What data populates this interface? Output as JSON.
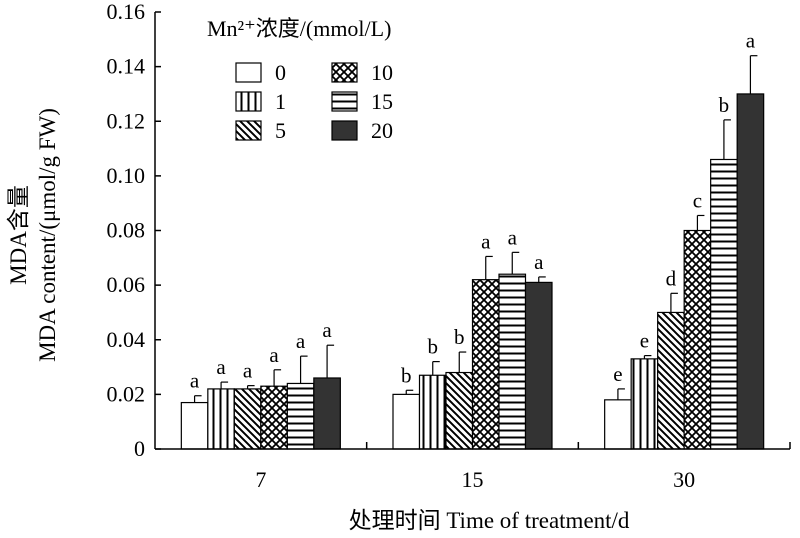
{
  "chart_data": {
    "type": "bar",
    "categories": [
      "7",
      "15",
      "30"
    ],
    "series": [
      {
        "name": "0",
        "values": [
          0.017,
          0.02,
          0.018
        ],
        "errors": [
          0.0025,
          0.0015,
          0.004
        ],
        "letters": [
          "a",
          "b",
          "e"
        ],
        "fill": "blank"
      },
      {
        "name": "1",
        "values": [
          0.022,
          0.027,
          0.033
        ],
        "errors": [
          0.0025,
          0.005,
          0.0012
        ],
        "letters": [
          "a",
          "b",
          "e"
        ],
        "fill": "vertical"
      },
      {
        "name": "5",
        "values": [
          0.022,
          0.028,
          0.05
        ],
        "errors": [
          0.0012,
          0.0075,
          0.007
        ],
        "letters": [
          "a",
          "b",
          "d"
        ],
        "fill": "diagonal"
      },
      {
        "name": "10",
        "values": [
          0.023,
          0.062,
          0.08
        ],
        "errors": [
          0.006,
          0.0085,
          0.0055
        ],
        "letters": [
          "a",
          "a",
          "c"
        ],
        "fill": "crosshatch"
      },
      {
        "name": "15",
        "values": [
          0.024,
          0.064,
          0.106
        ],
        "errors": [
          0.01,
          0.008,
          0.0145
        ],
        "letters": [
          "a",
          "a",
          "b"
        ],
        "fill": "horizontal"
      },
      {
        "name": "20",
        "values": [
          0.026,
          0.061,
          0.13
        ],
        "errors": [
          0.012,
          0.002,
          0.014
        ],
        "letters": [
          "a",
          "a",
          "a"
        ],
        "fill": "solid"
      }
    ],
    "title": "",
    "xlabel": "处理时间 Time of treatment/d",
    "ylabel_line1": "MDA含量",
    "ylabel_line2": "MDA content/(μmol/g FW)",
    "ylim": [
      0,
      0.16
    ],
    "yticks": [
      "0",
      "0.02",
      "0.04",
      "0.06",
      "0.08",
      "0.10",
      "0.12",
      "0.14",
      "0.16"
    ],
    "legend_title": "Mn²⁺浓度/(mmol/L)",
    "legend_position": "top-left",
    "grid": false,
    "colors": {
      "bar_stroke": "#000000",
      "solid_fill": "#333333",
      "background": "#ffffff"
    }
  }
}
